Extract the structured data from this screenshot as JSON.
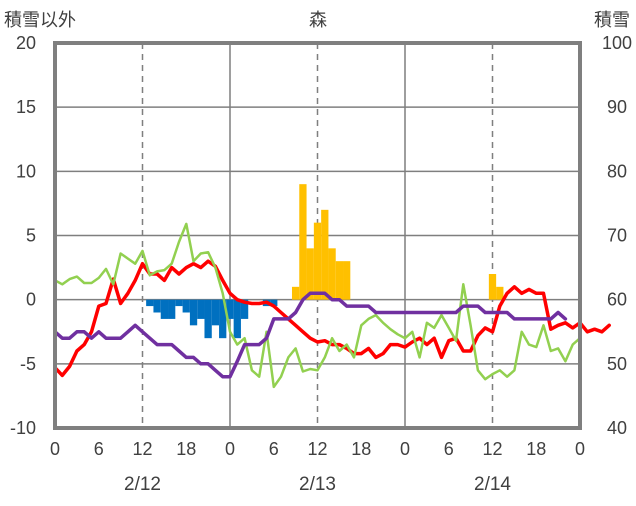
{
  "chart_data": {
    "type": "bar+line",
    "title": "森",
    "left_axis_label": "積雪以外",
    "right_axis_label": "積雪",
    "left_axis": {
      "ylim": [
        -10,
        20
      ],
      "ticks": [
        -10,
        -5,
        0,
        5,
        10,
        15,
        20
      ]
    },
    "right_axis": {
      "ylim": [
        40,
        100
      ],
      "ticks": [
        40,
        50,
        60,
        70,
        80,
        90,
        100
      ]
    },
    "x_axis": {
      "range_hours": [
        0,
        72
      ],
      "ticks": [
        0,
        6,
        12,
        18,
        24,
        30,
        36,
        42,
        48,
        54,
        60,
        66,
        72
      ],
      "tick_labels": [
        "0",
        "6",
        "12",
        "18",
        "0",
        "6",
        "12",
        "18",
        "0",
        "6",
        "12",
        "18",
        "0"
      ],
      "dashed_grid_hours": [
        12,
        36,
        60
      ],
      "solid_grid_hours": [
        24,
        48
      ],
      "date_labels": [
        {
          "text": "2/12",
          "hour": 12
        },
        {
          "text": "2/13",
          "hour": 36
        },
        {
          "text": "2/14",
          "hour": 60
        }
      ]
    },
    "grid": true,
    "colors": {
      "red": "#ff0000",
      "green": "#92d050",
      "purple": "#7030a0",
      "blue_bars": "#0070c0",
      "orange_bars": "#ffc000",
      "frame": "#7f7f7f",
      "grid": "#7f7f7f"
    },
    "series": [
      {
        "color_key": "red",
        "axis": "left",
        "type": "line",
        "points": [
          [
            0,
            -5.3
          ],
          [
            1,
            -5.9
          ],
          [
            2,
            -5.2
          ],
          [
            3,
            -4.0
          ],
          [
            4,
            -3.5
          ],
          [
            5,
            -2.5
          ],
          [
            6,
            -0.5
          ],
          [
            7,
            -0.3
          ],
          [
            8,
            1.6
          ],
          [
            9,
            -0.3
          ],
          [
            10,
            0.5
          ],
          [
            11,
            1.5
          ],
          [
            12,
            2.8
          ],
          [
            13,
            2.0
          ],
          [
            14,
            2.0
          ],
          [
            15,
            1.5
          ],
          [
            16,
            2.5
          ],
          [
            17,
            2.0
          ],
          [
            18,
            2.5
          ],
          [
            19,
            2.8
          ],
          [
            20,
            2.5
          ],
          [
            21,
            3.0
          ],
          [
            22,
            2.6
          ],
          [
            23,
            1.5
          ],
          [
            24,
            0.5
          ],
          [
            25,
            0
          ],
          [
            26,
            -0.2
          ],
          [
            27,
            -0.3
          ],
          [
            28,
            -0.3
          ],
          [
            29,
            -0.2
          ],
          [
            30,
            -0.5
          ],
          [
            31,
            -1.0
          ],
          [
            32,
            -1.5
          ],
          [
            33,
            -2.0
          ],
          [
            34,
            -2.5
          ],
          [
            35,
            -3.0
          ],
          [
            36,
            -3.3
          ],
          [
            37,
            -3.2
          ],
          [
            38,
            -3.5
          ],
          [
            39,
            -3.5
          ],
          [
            40,
            -3.8
          ],
          [
            41,
            -4.2
          ],
          [
            42,
            -4.2
          ],
          [
            43,
            -3.8
          ],
          [
            44,
            -4.5
          ],
          [
            45,
            -4.2
          ],
          [
            46,
            -3.5
          ],
          [
            47,
            -3.5
          ],
          [
            48,
            -3.7
          ],
          [
            49,
            -3.3
          ],
          [
            50,
            -3.0
          ],
          [
            51,
            -3.5
          ],
          [
            52,
            -3.0
          ],
          [
            53,
            -4.5
          ],
          [
            54,
            -3.2
          ],
          [
            55,
            -3.0
          ],
          [
            56,
            -4.0
          ],
          [
            57,
            -4.0
          ],
          [
            58,
            -2.8
          ],
          [
            59,
            -2.2
          ],
          [
            60,
            -2.5
          ],
          [
            61,
            -0.5
          ],
          [
            62,
            0.5
          ],
          [
            63,
            1.0
          ],
          [
            64,
            0.5
          ],
          [
            65,
            0.8
          ],
          [
            66,
            0.5
          ],
          [
            67,
            0.5
          ],
          [
            68,
            -2.3
          ],
          [
            69,
            -2.0
          ],
          [
            70,
            -1.8
          ],
          [
            71,
            -2.2
          ],
          [
            72,
            -1.8
          ],
          [
            73,
            -2.5
          ],
          [
            74,
            -2.3
          ],
          [
            75,
            -2.5
          ],
          [
            76,
            -2.0
          ]
        ]
      },
      {
        "color_key": "green",
        "axis": "left",
        "type": "line",
        "points": [
          [
            0,
            1.5
          ],
          [
            1,
            1.2
          ],
          [
            2,
            1.6
          ],
          [
            3,
            1.8
          ],
          [
            4,
            1.3
          ],
          [
            5,
            1.3
          ],
          [
            6,
            1.7
          ],
          [
            7,
            2.4
          ],
          [
            8,
            1.2
          ],
          [
            9,
            3.6
          ],
          [
            10,
            3.2
          ],
          [
            11,
            2.8
          ],
          [
            12,
            3.8
          ],
          [
            13,
            1.9
          ],
          [
            14,
            2.2
          ],
          [
            15,
            2.3
          ],
          [
            16,
            2.8
          ],
          [
            17,
            4.5
          ],
          [
            18,
            5.9
          ],
          [
            19,
            3.0
          ],
          [
            20,
            3.6
          ],
          [
            21,
            3.7
          ],
          [
            22,
            2.5
          ],
          [
            23,
            0.5
          ],
          [
            24,
            -2.5
          ],
          [
            25,
            -3.5
          ],
          [
            26,
            -3.0
          ],
          [
            27,
            -5.5
          ],
          [
            28,
            -6.0
          ],
          [
            29,
            -2.5
          ],
          [
            30,
            -6.8
          ],
          [
            31,
            -6.0
          ],
          [
            32,
            -4.5
          ],
          [
            33,
            -3.8
          ],
          [
            34,
            -5.6
          ],
          [
            35,
            -5.4
          ],
          [
            36,
            -5.5
          ],
          [
            37,
            -4.5
          ],
          [
            38,
            -3.0
          ],
          [
            39,
            -4.0
          ],
          [
            40,
            -3.5
          ],
          [
            41,
            -4.5
          ],
          [
            42,
            -2.0
          ],
          [
            43,
            -1.5
          ],
          [
            44,
            -1.2
          ],
          [
            45,
            -1.8
          ],
          [
            46,
            -2.3
          ],
          [
            47,
            -2.7
          ],
          [
            48,
            -3.0
          ],
          [
            49,
            -2.5
          ],
          [
            50,
            -4.5
          ],
          [
            51,
            -1.8
          ],
          [
            52,
            -2.2
          ],
          [
            53,
            -1.2
          ],
          [
            54,
            -2.2
          ],
          [
            55,
            -3.2
          ],
          [
            56,
            1.2
          ],
          [
            57,
            -2.0
          ],
          [
            58,
            -5.5
          ],
          [
            59,
            -6.2
          ],
          [
            60,
            -5.8
          ],
          [
            61,
            -5.5
          ],
          [
            62,
            -6.0
          ],
          [
            63,
            -5.5
          ],
          [
            64,
            -2.5
          ],
          [
            65,
            -3.5
          ],
          [
            66,
            -3.7
          ],
          [
            67,
            -2.0
          ],
          [
            68,
            -4.0
          ],
          [
            69,
            -3.8
          ],
          [
            70,
            -4.8
          ],
          [
            71,
            -3.5
          ],
          [
            72,
            -3.0
          ]
        ]
      },
      {
        "color_key": "purple",
        "axis": "left",
        "type": "line",
        "points": [
          [
            0,
            -2.5
          ],
          [
            1,
            -3.0
          ],
          [
            2,
            -3.0
          ],
          [
            3,
            -2.5
          ],
          [
            4,
            -2.5
          ],
          [
            5,
            -3.0
          ],
          [
            6,
            -2.5
          ],
          [
            7,
            -3.0
          ],
          [
            8,
            -3.0
          ],
          [
            9,
            -3.0
          ],
          [
            10,
            -2.5
          ],
          [
            11,
            -2.0
          ],
          [
            12,
            -2.5
          ],
          [
            13,
            -3.0
          ],
          [
            14,
            -3.5
          ],
          [
            15,
            -3.5
          ],
          [
            16,
            -3.5
          ],
          [
            17,
            -4.0
          ],
          [
            18,
            -4.5
          ],
          [
            19,
            -4.5
          ],
          [
            20,
            -5.0
          ],
          [
            21,
            -5.0
          ],
          [
            22,
            -5.5
          ],
          [
            23,
            -6.0
          ],
          [
            24,
            -6.0
          ],
          [
            25,
            -4.8
          ],
          [
            26,
            -3.5
          ],
          [
            27,
            -3.5
          ],
          [
            28,
            -3.5
          ],
          [
            29,
            -3.0
          ],
          [
            30,
            -1.5
          ],
          [
            31,
            -1.5
          ],
          [
            32,
            -1.5
          ],
          [
            33,
            -1.0
          ],
          [
            34,
            0
          ],
          [
            35,
            0.5
          ],
          [
            36,
            0.5
          ],
          [
            37,
            0.5
          ],
          [
            38,
            0
          ],
          [
            39,
            0
          ],
          [
            40,
            -0.5
          ],
          [
            41,
            -0.5
          ],
          [
            42,
            -0.5
          ],
          [
            43,
            -0.5
          ],
          [
            44,
            -1.0
          ],
          [
            45,
            -1.0
          ],
          [
            46,
            -1.0
          ],
          [
            47,
            -1.0
          ],
          [
            48,
            -1.0
          ],
          [
            49,
            -1.0
          ],
          [
            50,
            -1.0
          ],
          [
            51,
            -1.0
          ],
          [
            52,
            -1.0
          ],
          [
            53,
            -1.0
          ],
          [
            54,
            -1.0
          ],
          [
            55,
            -1.0
          ],
          [
            56,
            -0.5
          ],
          [
            57,
            -0.5
          ],
          [
            58,
            -0.5
          ],
          [
            59,
            -1.0
          ],
          [
            60,
            -1.0
          ],
          [
            61,
            -1.0
          ],
          [
            62,
            -1.0
          ],
          [
            63,
            -1.5
          ],
          [
            64,
            -1.5
          ],
          [
            65,
            -1.5
          ],
          [
            66,
            -1.5
          ],
          [
            67,
            -1.5
          ],
          [
            68,
            -1.5
          ],
          [
            69,
            -1.0
          ],
          [
            70,
            -1.5
          ]
        ]
      },
      {
        "color_key": "blue_bars",
        "axis": "left",
        "type": "bar",
        "points": [
          [
            13,
            -0.5
          ],
          [
            14,
            -1.0
          ],
          [
            15,
            -1.5
          ],
          [
            16,
            -1.5
          ],
          [
            17,
            -0.5
          ],
          [
            18,
            -1.0
          ],
          [
            19,
            -2.0
          ],
          [
            20,
            -1.5
          ],
          [
            21,
            -3.0
          ],
          [
            22,
            -2.0
          ],
          [
            23,
            -3.0
          ],
          [
            24,
            -1.5
          ],
          [
            25,
            -3.0
          ],
          [
            26,
            -1.5
          ],
          [
            29,
            -0.5
          ],
          [
            30,
            -0.5
          ]
        ]
      },
      {
        "color_key": "orange_bars",
        "axis": "left",
        "type": "bar",
        "points": [
          [
            33,
            1.0
          ],
          [
            34,
            9.0
          ],
          [
            35,
            4.0
          ],
          [
            36,
            6.0
          ],
          [
            37,
            7.0
          ],
          [
            38,
            4.0
          ],
          [
            39,
            3.0
          ],
          [
            40,
            3.0
          ],
          [
            60,
            2.0
          ],
          [
            61,
            1.0
          ]
        ]
      }
    ]
  }
}
